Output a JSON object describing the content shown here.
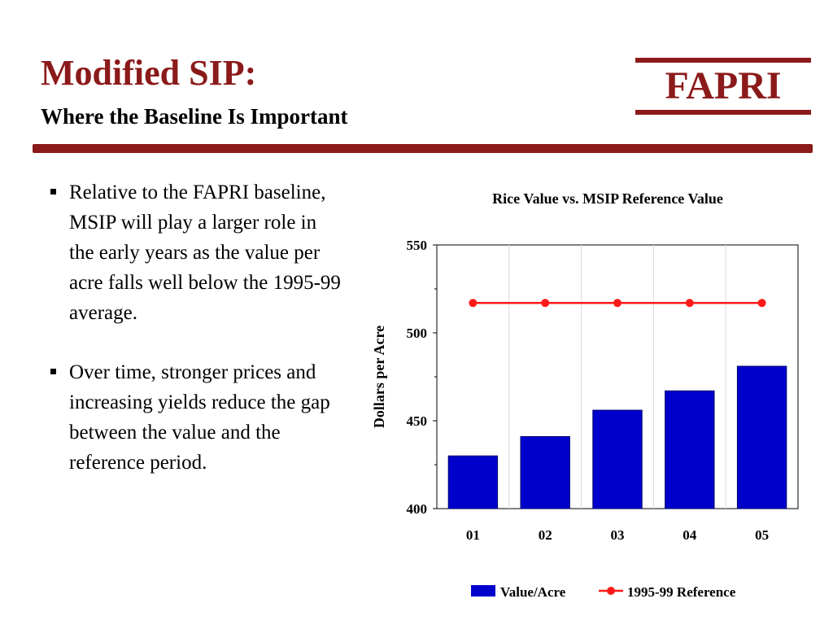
{
  "header": {
    "title": "Modified SIP:",
    "subtitle": "Where the Baseline Is Important",
    "logo_text": "FAPRI"
  },
  "bullets": [
    "Relative to the FAPRI baseline, MSIP will play a larger role in the early years as the value per acre falls well below the 1995-99 average.",
    "Over time, stronger prices and increasing yields reduce the gap between the value and the reference period."
  ],
  "colors": {
    "brand": "#8b1a1a",
    "bar": "#0000cc",
    "reference": "#ff1a1a"
  },
  "chart_data": {
    "type": "bar",
    "title": "Rice Value vs. MSIP Reference Value",
    "ylabel": "Dollars per Acre",
    "xlabel": "",
    "categories": [
      "01",
      "02",
      "03",
      "04",
      "05"
    ],
    "ylim": [
      400,
      550
    ],
    "yticks": [
      400,
      450,
      500,
      550
    ],
    "grid": true,
    "legend_position": "bottom",
    "series": [
      {
        "name": "Value/Acre",
        "type": "bar",
        "values": [
          430,
          441,
          456,
          467,
          481
        ]
      },
      {
        "name": "1995-99 Reference",
        "type": "line",
        "values": [
          517,
          517,
          517,
          517,
          517
        ]
      }
    ]
  }
}
